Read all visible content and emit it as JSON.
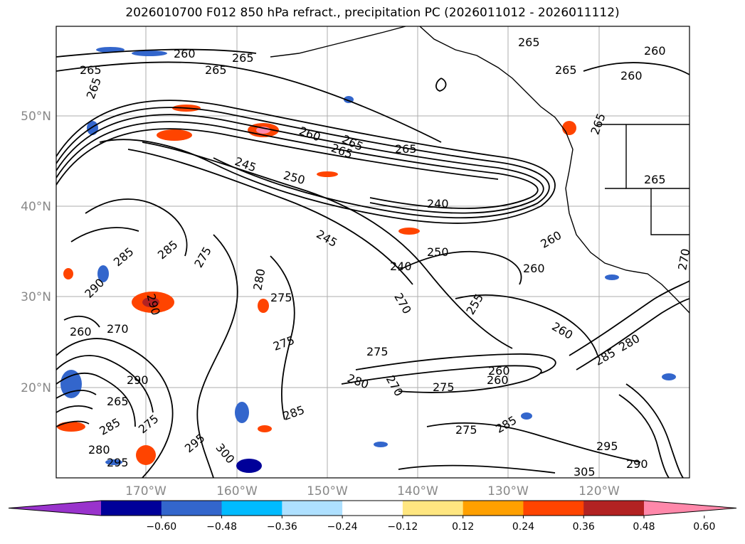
{
  "title": "2026010700 F012 850 hPa refract., precipitation PC (2026011012 - 2026011112)",
  "lat_labels": [
    "50°N",
    "40°N",
    "30°N",
    "20°N"
  ],
  "lon_labels": [
    "170°W",
    "160°W",
    "150°W",
    "140°W",
    "130°W",
    "120°W"
  ],
  "contour_labels": [
    "265",
    "260",
    "265",
    "265",
    "265",
    "265",
    "260",
    "265",
    "260",
    "265",
    "260",
    "245",
    "250",
    "265",
    "265",
    "240",
    "245",
    "250",
    "240",
    "265",
    "260",
    "285",
    "285",
    "275",
    "290",
    "290",
    "270",
    "260",
    "280",
    "275",
    "275",
    "270",
    "255",
    "260",
    "275",
    "280",
    "270",
    "260",
    "260",
    "285",
    "280",
    "285",
    "290",
    "295",
    "265",
    "275",
    "280",
    "300",
    "285",
    "285",
    "295",
    "305",
    "295",
    "265",
    "270",
    "275",
    "260",
    "290",
    "275"
  ],
  "colorbar": {
    "ticks": [
      "−0.60",
      "−0.48",
      "−0.36",
      "−0.24",
      "−0.12",
      "0.12",
      "0.24",
      "0.36",
      "0.48",
      "0.60"
    ],
    "colors": [
      "#9933cc",
      "#000099",
      "#3366cc",
      "#00bbff",
      "#aee0ff",
      "#ffffff",
      "#ffe680",
      "#ffa000",
      "#ff4400",
      "#b22222",
      "#ff88aa"
    ]
  }
}
